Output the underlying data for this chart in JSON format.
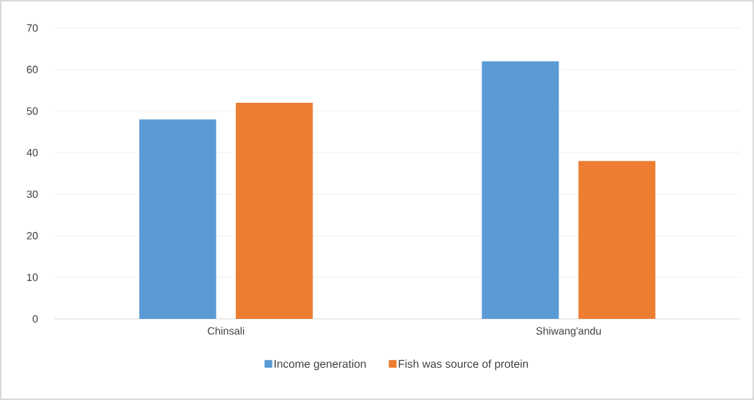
{
  "chart_data": {
    "type": "bar",
    "categories": [
      "Chinsali",
      "Shiwang'andu"
    ],
    "series": [
      {
        "name": "Income generation",
        "color": "#5b9bd5",
        "values": [
          48,
          62
        ]
      },
      {
        "name": "Fish was source of protein",
        "color": "#ed7d31",
        "values": [
          52,
          38
        ]
      }
    ],
    "ylim": [
      0,
      70
    ],
    "yticks": [
      0,
      10,
      20,
      30,
      40,
      50,
      60,
      70
    ],
    "grid": "y",
    "legend": "bottom"
  }
}
